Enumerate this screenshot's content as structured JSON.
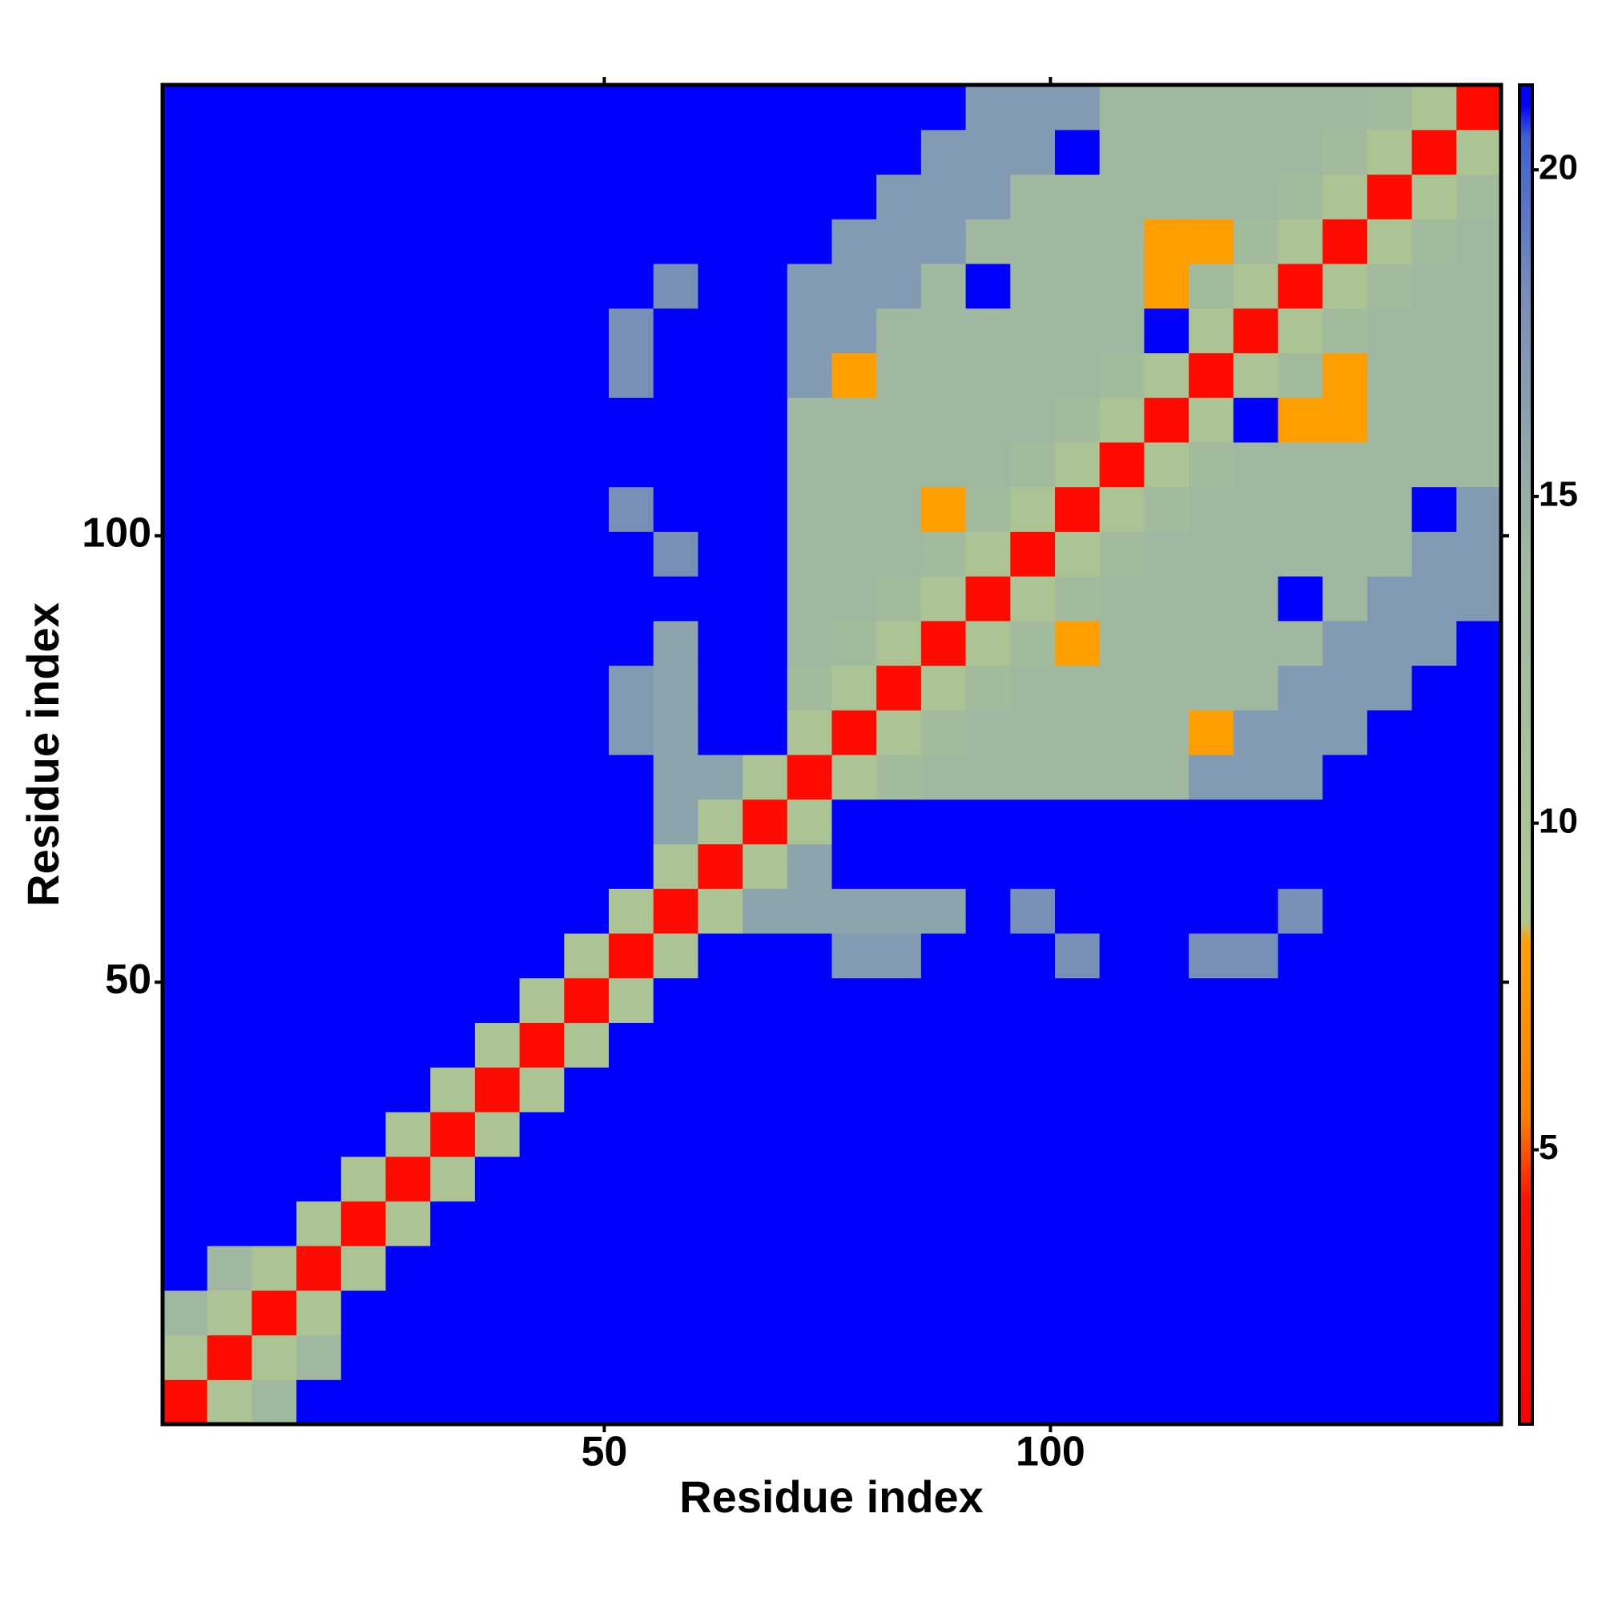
{
  "chart_data": {
    "type": "heatmap",
    "xlabel": "Residue index",
    "ylabel": "Residue index",
    "xlim": [
      0.5,
      150.5
    ],
    "ylim": [
      0.5,
      150.5
    ],
    "xticks": [
      50,
      100
    ],
    "yticks": [
      50,
      100
    ],
    "colorbar": {
      "lim": [
        0.8,
        21.3
      ],
      "ticks": [
        5,
        10,
        15,
        20
      ]
    },
    "colorscale": [
      [
        0.8,
        "#ff0000"
      ],
      [
        4.2,
        "#ff1000"
      ],
      [
        5.5,
        "#ff8000"
      ],
      [
        8.2,
        "#ffa000"
      ],
      [
        8.5,
        "#b0c890"
      ],
      [
        14,
        "#a0b8a0"
      ],
      [
        18,
        "#7890b8"
      ],
      [
        20.5,
        "#4060d0"
      ],
      [
        21,
        "#0000ff"
      ],
      [
        21.3,
        "#0000ff"
      ]
    ],
    "z": [
      [
        3,
        10,
        14,
        21,
        21,
        21,
        21,
        21,
        21,
        21,
        21,
        21,
        21,
        21,
        21,
        21,
        21,
        21,
        21,
        21,
        21,
        21,
        21,
        21,
        21,
        21,
        21,
        21,
        21,
        21
      ],
      [
        10,
        3,
        10,
        14,
        21,
        21,
        21,
        21,
        21,
        21,
        21,
        21,
        21,
        21,
        21,
        21,
        21,
        21,
        21,
        21,
        21,
        21,
        21,
        21,
        21,
        21,
        21,
        21,
        21,
        21
      ],
      [
        14,
        10,
        3,
        10,
        21,
        21,
        21,
        21,
        21,
        21,
        21,
        21,
        21,
        21,
        21,
        21,
        21,
        21,
        21,
        21,
        21,
        21,
        21,
        21,
        21,
        21,
        21,
        21,
        21,
        21
      ],
      [
        21,
        14,
        10,
        3,
        10,
        21,
        21,
        21,
        21,
        21,
        21,
        21,
        21,
        21,
        21,
        21,
        21,
        21,
        21,
        21,
        21,
        21,
        21,
        21,
        21,
        21,
        21,
        21,
        21,
        21
      ],
      [
        21,
        21,
        21,
        10,
        3,
        10,
        21,
        21,
        21,
        21,
        21,
        21,
        21,
        21,
        21,
        21,
        21,
        21,
        21,
        21,
        21,
        21,
        21,
        21,
        21,
        21,
        21,
        21,
        21,
        21
      ],
      [
        21,
        21,
        21,
        21,
        10,
        3,
        10,
        21,
        21,
        21,
        21,
        21,
        21,
        21,
        21,
        21,
        21,
        21,
        21,
        21,
        21,
        21,
        21,
        21,
        21,
        21,
        21,
        21,
        21,
        21
      ],
      [
        21,
        21,
        21,
        21,
        21,
        10,
        3,
        10,
        21,
        21,
        21,
        21,
        21,
        21,
        21,
        21,
        21,
        21,
        21,
        21,
        21,
        21,
        21,
        21,
        21,
        21,
        21,
        21,
        21,
        21
      ],
      [
        21,
        21,
        21,
        21,
        21,
        21,
        10,
        3,
        10,
        21,
        21,
        21,
        21,
        21,
        21,
        21,
        21,
        21,
        21,
        21,
        21,
        21,
        21,
        21,
        21,
        21,
        21,
        21,
        21,
        21
      ],
      [
        21,
        21,
        21,
        21,
        21,
        21,
        21,
        10,
        3,
        10,
        21,
        21,
        21,
        21,
        21,
        21,
        21,
        21,
        21,
        21,
        21,
        21,
        21,
        21,
        21,
        21,
        21,
        21,
        21,
        21
      ],
      [
        21,
        21,
        21,
        21,
        21,
        21,
        21,
        21,
        10,
        3,
        10,
        21,
        21,
        21,
        21,
        21,
        21,
        21,
        21,
        21,
        21,
        21,
        21,
        21,
        21,
        21,
        21,
        21,
        21,
        21
      ],
      [
        21,
        21,
        21,
        21,
        21,
        21,
        21,
        21,
        21,
        10,
        3,
        10,
        21,
        21,
        21,
        17,
        17,
        21,
        21,
        21,
        18,
        21,
        21,
        18,
        18,
        21,
        21,
        21,
        21,
        21
      ],
      [
        21,
        21,
        21,
        21,
        21,
        21,
        21,
        21,
        21,
        21,
        10,
        3,
        10,
        16,
        16,
        16,
        16,
        16,
        21,
        18,
        21,
        21,
        21,
        21,
        21,
        18,
        21,
        21,
        21,
        21
      ],
      [
        21,
        21,
        21,
        21,
        21,
        21,
        21,
        21,
        21,
        21,
        21,
        10,
        3,
        10,
        16,
        21,
        21,
        21,
        21,
        21,
        21,
        21,
        21,
        21,
        21,
        21,
        21,
        21,
        21,
        21
      ],
      [
        21,
        21,
        21,
        21,
        21,
        21,
        21,
        21,
        21,
        21,
        21,
        16,
        10,
        3,
        10,
        21,
        21,
        21,
        21,
        21,
        21,
        21,
        21,
        21,
        21,
        21,
        21,
        21,
        21,
        21
      ],
      [
        21,
        21,
        21,
        21,
        21,
        21,
        21,
        21,
        21,
        21,
        21,
        16,
        16,
        10,
        3,
        10,
        13,
        14,
        14,
        14,
        14,
        14,
        14,
        17,
        17,
        17,
        21,
        21,
        21,
        21
      ],
      [
        21,
        21,
        21,
        21,
        21,
        21,
        21,
        21,
        21,
        21,
        17,
        16,
        21,
        21,
        10,
        3,
        10,
        13,
        14,
        14,
        14,
        14,
        14,
        8,
        17,
        17,
        17,
        21,
        21,
        21
      ],
      [
        21,
        21,
        21,
        21,
        21,
        21,
        21,
        21,
        21,
        21,
        17,
        16,
        21,
        21,
        13,
        10,
        3,
        10,
        13,
        14,
        14,
        14,
        14,
        14,
        14,
        17,
        17,
        17,
        21,
        21
      ],
      [
        21,
        21,
        21,
        21,
        21,
        21,
        21,
        21,
        21,
        21,
        21,
        16,
        21,
        21,
        14,
        13,
        10,
        3,
        10,
        13,
        8,
        14,
        14,
        14,
        14,
        14,
        17,
        17,
        17,
        21
      ],
      [
        21,
        21,
        21,
        21,
        21,
        21,
        21,
        21,
        21,
        21,
        21,
        21,
        21,
        21,
        14,
        14,
        13,
        10,
        3,
        10,
        13,
        14,
        14,
        14,
        14,
        21,
        14,
        17,
        17,
        17
      ],
      [
        21,
        21,
        21,
        21,
        21,
        21,
        21,
        21,
        21,
        21,
        21,
        18,
        21,
        21,
        14,
        14,
        14,
        13,
        10,
        3,
        10,
        13,
        14,
        14,
        14,
        14,
        14,
        14,
        17,
        17
      ],
      [
        21,
        21,
        21,
        21,
        21,
        21,
        21,
        21,
        21,
        21,
        18,
        21,
        21,
        21,
        14,
        14,
        14,
        8,
        13,
        10,
        3,
        10,
        13,
        14,
        14,
        14,
        14,
        14,
        21,
        17
      ],
      [
        21,
        21,
        21,
        21,
        21,
        21,
        21,
        21,
        21,
        21,
        21,
        21,
        21,
        21,
        14,
        14,
        14,
        14,
        14,
        13,
        10,
        3,
        10,
        13,
        14,
        14,
        14,
        14,
        14,
        14
      ],
      [
        21,
        21,
        21,
        21,
        21,
        21,
        21,
        21,
        21,
        21,
        21,
        21,
        21,
        21,
        14,
        14,
        14,
        14,
        14,
        14,
        13,
        10,
        3,
        10,
        21,
        8,
        8,
        14,
        14,
        14
      ],
      [
        21,
        21,
        21,
        21,
        21,
        21,
        21,
        21,
        21,
        21,
        18,
        21,
        21,
        21,
        17,
        8,
        14,
        14,
        14,
        14,
        14,
        13,
        10,
        3,
        10,
        13,
        8,
        14,
        14,
        14
      ],
      [
        21,
        21,
        21,
        21,
        21,
        21,
        21,
        21,
        21,
        21,
        18,
        21,
        21,
        21,
        17,
        17,
        14,
        14,
        14,
        14,
        14,
        14,
        21,
        10,
        3,
        10,
        13,
        14,
        14,
        14
      ],
      [
        21,
        21,
        21,
        21,
        21,
        21,
        21,
        21,
        21,
        21,
        21,
        18,
        21,
        21,
        17,
        17,
        17,
        14,
        21,
        14,
        14,
        14,
        8,
        13,
        10,
        3,
        10,
        13,
        14,
        14
      ],
      [
        21,
        21,
        21,
        21,
        21,
        21,
        21,
        21,
        21,
        21,
        21,
        21,
        21,
        21,
        21,
        17,
        17,
        17,
        14,
        14,
        14,
        14,
        8,
        8,
        13,
        10,
        3,
        10,
        13,
        14
      ],
      [
        21,
        21,
        21,
        21,
        21,
        21,
        21,
        21,
        21,
        21,
        21,
        21,
        21,
        21,
        21,
        21,
        17,
        17,
        17,
        14,
        14,
        14,
        14,
        14,
        14,
        13,
        10,
        3,
        10,
        13
      ],
      [
        21,
        21,
        21,
        21,
        21,
        21,
        21,
        21,
        21,
        21,
        21,
        21,
        21,
        21,
        21,
        21,
        21,
        17,
        17,
        17,
        21,
        14,
        14,
        14,
        14,
        14,
        13,
        10,
        3,
        10
      ],
      [
        21,
        21,
        21,
        21,
        21,
        21,
        21,
        21,
        21,
        21,
        21,
        21,
        21,
        21,
        21,
        21,
        21,
        21,
        17,
        17,
        17,
        14,
        14,
        14,
        14,
        14,
        14,
        13,
        10,
        3
      ]
    ]
  }
}
